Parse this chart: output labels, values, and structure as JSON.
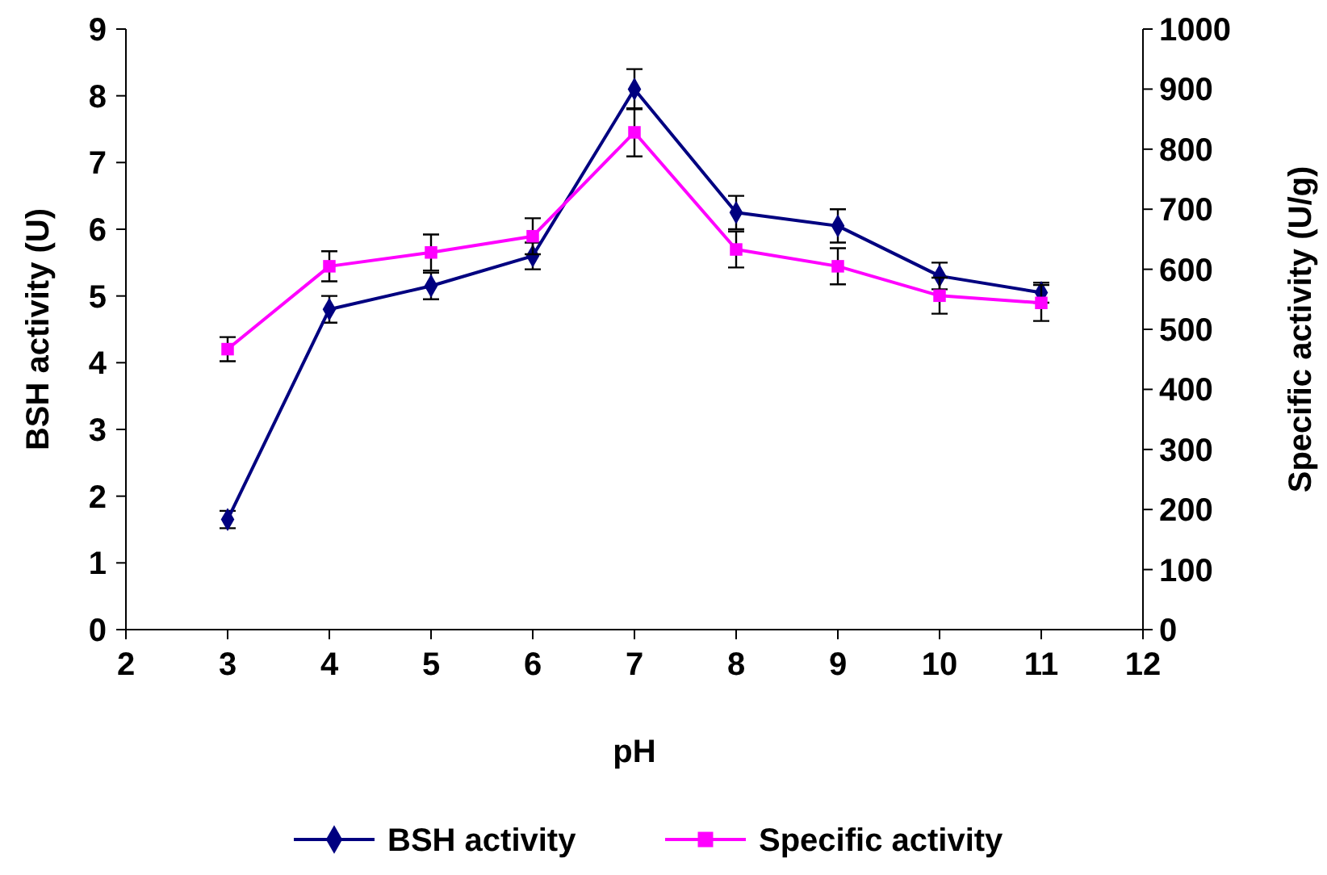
{
  "chart_data": {
    "type": "line",
    "xlabel": "pH",
    "ylabel": "BSH activity (U)",
    "y2label": "Specific activity (U/g)",
    "x": [
      3,
      4,
      5,
      6,
      7,
      8,
      9,
      10,
      11
    ],
    "series": [
      {
        "name": "BSH activity",
        "color": "#000080",
        "marker": "diamond",
        "values": [
          1.65,
          4.8,
          5.15,
          5.6,
          8.1,
          6.25,
          6.05,
          5.3,
          5.05
        ],
        "errors": [
          0.13,
          0.2,
          0.2,
          0.2,
          0.3,
          0.25,
          0.25,
          0.2,
          0.15
        ]
      },
      {
        "name": "Specific activity",
        "color": "#ff00ff",
        "marker": "square",
        "axis": "y2",
        "values": [
          467,
          605,
          628,
          655,
          828,
          633,
          605,
          556,
          544
        ],
        "errors": [
          20,
          25,
          30,
          30,
          40,
          30,
          30,
          30,
          30
        ]
      }
    ],
    "xlim": [
      2,
      12
    ],
    "xticks": [
      2,
      3,
      4,
      5,
      6,
      7,
      8,
      9,
      10,
      11,
      12
    ],
    "ylim": [
      0,
      9
    ],
    "yticks": [
      0,
      1,
      2,
      3,
      4,
      5,
      6,
      7,
      8,
      9
    ],
    "y2lim": [
      0,
      1000
    ],
    "y2ticks": [
      0,
      100,
      200,
      300,
      400,
      500,
      600,
      700,
      800,
      900,
      1000
    ],
    "legend": "bottom",
    "line_style": "solid"
  }
}
